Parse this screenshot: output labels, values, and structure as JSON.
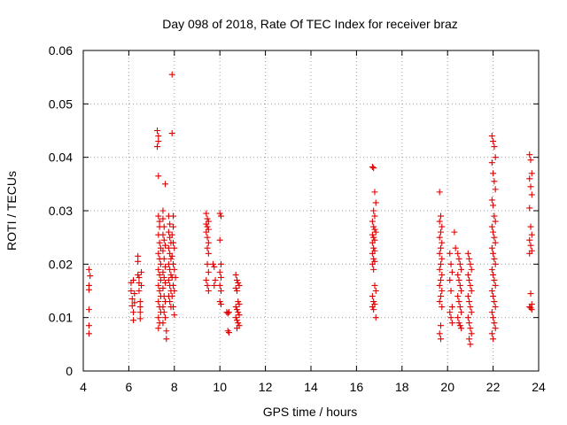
{
  "chart_data": {
    "type": "scatter",
    "title": "Day 098 of 2018, Rate Of TEC Index for receiver braz",
    "xlabel": "GPS time / hours",
    "ylabel": "ROTI / TECUs",
    "xlim": [
      4,
      24
    ],
    "ylim": [
      0,
      0.06
    ],
    "xticks": [
      "4",
      "6",
      "8",
      "10",
      "12",
      "14",
      "16",
      "18",
      "20",
      "22",
      "24"
    ],
    "yticks": [
      "0",
      "0.01",
      "0.02",
      "0.03",
      "0.04",
      "0.05",
      "0.06"
    ],
    "grid": true,
    "marker": "+",
    "marker_color": "#e00000",
    "series": [
      {
        "points": [
          [
            4.25,
            0.019
          ],
          [
            4.25,
            0.016
          ],
          [
            4.25,
            0.0152
          ],
          [
            4.25,
            0.0115
          ],
          [
            4.25,
            0.0085
          ],
          [
            4.25,
            0.007
          ],
          [
            4.3,
            0.0178
          ],
          [
            6.1,
            0.0165
          ],
          [
            6.1,
            0.015
          ],
          [
            6.15,
            0.0135
          ],
          [
            6.15,
            0.0122
          ],
          [
            6.2,
            0.011
          ],
          [
            6.2,
            0.0095
          ],
          [
            6.2,
            0.017
          ],
          [
            6.25,
            0.0128
          ],
          [
            6.25,
            0.0145
          ],
          [
            6.4,
            0.0215
          ],
          [
            6.4,
            0.0205
          ],
          [
            6.4,
            0.018
          ],
          [
            6.45,
            0.0175
          ],
          [
            6.45,
            0.0165
          ],
          [
            6.45,
            0.015
          ],
          [
            6.5,
            0.013
          ],
          [
            6.5,
            0.012
          ],
          [
            6.5,
            0.011
          ],
          [
            6.5,
            0.0098
          ],
          [
            6.55,
            0.0185
          ],
          [
            6.55,
            0.016
          ],
          [
            7.25,
            0.045
          ],
          [
            7.3,
            0.044
          ],
          [
            7.3,
            0.043
          ],
          [
            7.25,
            0.042
          ],
          [
            7.3,
            0.0365
          ],
          [
            7.3,
            0.029
          ],
          [
            7.35,
            0.028
          ],
          [
            7.35,
            0.027
          ],
          [
            7.3,
            0.0255
          ],
          [
            7.35,
            0.024
          ],
          [
            7.4,
            0.023
          ],
          [
            7.3,
            0.022
          ],
          [
            7.35,
            0.021
          ],
          [
            7.4,
            0.02
          ],
          [
            7.3,
            0.019
          ],
          [
            7.35,
            0.018
          ],
          [
            7.4,
            0.017
          ],
          [
            7.3,
            0.016
          ],
          [
            7.35,
            0.015
          ],
          [
            7.4,
            0.014
          ],
          [
            7.3,
            0.013
          ],
          [
            7.35,
            0.012
          ],
          [
            7.4,
            0.011
          ],
          [
            7.3,
            0.01
          ],
          [
            7.35,
            0.009
          ],
          [
            7.3,
            0.008
          ],
          [
            7.5,
            0.03
          ],
          [
            7.5,
            0.0285
          ],
          [
            7.55,
            0.027
          ],
          [
            7.5,
            0.0255
          ],
          [
            7.55,
            0.0245
          ],
          [
            7.6,
            0.0235
          ],
          [
            7.5,
            0.0225
          ],
          [
            7.55,
            0.021
          ],
          [
            7.6,
            0.0195
          ],
          [
            7.5,
            0.0185
          ],
          [
            7.55,
            0.0175
          ],
          [
            7.6,
            0.0165
          ],
          [
            7.5,
            0.0155
          ],
          [
            7.55,
            0.014
          ],
          [
            7.6,
            0.013
          ],
          [
            7.5,
            0.012
          ],
          [
            7.55,
            0.011
          ],
          [
            7.6,
            0.01
          ],
          [
            7.5,
            0.009
          ],
          [
            7.65,
            0.0075
          ],
          [
            7.65,
            0.006
          ],
          [
            7.6,
            0.035
          ],
          [
            7.75,
            0.029
          ],
          [
            7.8,
            0.0275
          ],
          [
            7.75,
            0.026
          ],
          [
            7.8,
            0.025
          ],
          [
            7.85,
            0.024
          ],
          [
            7.75,
            0.023
          ],
          [
            7.8,
            0.022
          ],
          [
            7.85,
            0.021
          ],
          [
            7.75,
            0.02
          ],
          [
            7.8,
            0.019
          ],
          [
            7.85,
            0.018
          ],
          [
            7.75,
            0.017
          ],
          [
            7.8,
            0.016
          ],
          [
            7.85,
            0.015
          ],
          [
            7.75,
            0.014
          ],
          [
            7.8,
            0.013
          ],
          [
            7.85,
            0.012
          ],
          [
            7.9,
            0.0555
          ],
          [
            7.9,
            0.0445
          ],
          [
            7.95,
            0.029
          ],
          [
            7.95,
            0.027
          ],
          [
            7.9,
            0.0255
          ],
          [
            7.95,
            0.024
          ],
          [
            8.0,
            0.023
          ],
          [
            7.9,
            0.0215
          ],
          [
            7.95,
            0.02
          ],
          [
            8.0,
            0.019
          ],
          [
            7.9,
            0.0175
          ],
          [
            7.95,
            0.016
          ],
          [
            8.0,
            0.015
          ],
          [
            7.9,
            0.014
          ],
          [
            7.95,
            0.012
          ],
          [
            8.0,
            0.0105
          ],
          [
            8.05,
            0.0175
          ],
          [
            9.4,
            0.0295
          ],
          [
            9.45,
            0.0285
          ],
          [
            9.5,
            0.028
          ],
          [
            9.4,
            0.0275
          ],
          [
            9.45,
            0.027
          ],
          [
            9.5,
            0.0265
          ],
          [
            9.4,
            0.026
          ],
          [
            9.45,
            0.025
          ],
          [
            9.5,
            0.024
          ],
          [
            9.45,
            0.023
          ],
          [
            9.5,
            0.022
          ],
          [
            9.45,
            0.02
          ],
          [
            9.5,
            0.0185
          ],
          [
            9.4,
            0.017
          ],
          [
            9.45,
            0.016
          ],
          [
            9.5,
            0.015
          ],
          [
            9.7,
            0.02
          ],
          [
            9.75,
            0.0195
          ],
          [
            9.8,
            0.017
          ],
          [
            9.75,
            0.016
          ],
          [
            10.0,
            0.0295
          ],
          [
            10.05,
            0.029
          ],
          [
            10.0,
            0.0245
          ],
          [
            10.05,
            0.02
          ],
          [
            10.0,
            0.0185
          ],
          [
            10.05,
            0.0175
          ],
          [
            10.0,
            0.016
          ],
          [
            10.05,
            0.015
          ],
          [
            10.0,
            0.013
          ],
          [
            10.05,
            0.0125
          ],
          [
            10.3,
            0.011
          ],
          [
            10.35,
            0.0108
          ],
          [
            10.4,
            0.011
          ],
          [
            10.35,
            0.0075
          ],
          [
            10.4,
            0.0072
          ],
          [
            10.7,
            0.018
          ],
          [
            10.75,
            0.017
          ],
          [
            10.8,
            0.0165
          ],
          [
            10.85,
            0.016
          ],
          [
            10.7,
            0.0155
          ],
          [
            10.75,
            0.015
          ],
          [
            10.8,
            0.013
          ],
          [
            10.85,
            0.0125
          ],
          [
            10.7,
            0.012
          ],
          [
            10.75,
            0.0115
          ],
          [
            10.8,
            0.011
          ],
          [
            10.85,
            0.0105
          ],
          [
            10.7,
            0.01
          ],
          [
            10.75,
            0.0095
          ],
          [
            10.8,
            0.009
          ],
          [
            10.85,
            0.0085
          ],
          [
            10.75,
            0.008
          ],
          [
            16.7,
            0.0382
          ],
          [
            16.75,
            0.038
          ],
          [
            16.8,
            0.0335
          ],
          [
            16.85,
            0.0315
          ],
          [
            16.75,
            0.03
          ],
          [
            16.8,
            0.029
          ],
          [
            16.7,
            0.028
          ],
          [
            16.75,
            0.027
          ],
          [
            16.8,
            0.0265
          ],
          [
            16.85,
            0.026
          ],
          [
            16.7,
            0.0255
          ],
          [
            16.75,
            0.025
          ],
          [
            16.8,
            0.0245
          ],
          [
            16.7,
            0.024
          ],
          [
            16.75,
            0.023
          ],
          [
            16.8,
            0.0225
          ],
          [
            16.7,
            0.022
          ],
          [
            16.75,
            0.021
          ],
          [
            16.8,
            0.0205
          ],
          [
            16.7,
            0.02
          ],
          [
            16.75,
            0.019
          ],
          [
            16.8,
            0.016
          ],
          [
            16.85,
            0.015
          ],
          [
            16.7,
            0.014
          ],
          [
            16.75,
            0.013
          ],
          [
            16.8,
            0.0125
          ],
          [
            16.7,
            0.012
          ],
          [
            16.75,
            0.0115
          ],
          [
            16.85,
            0.01
          ],
          [
            19.65,
            0.0335
          ],
          [
            19.7,
            0.029
          ],
          [
            19.65,
            0.028
          ],
          [
            19.75,
            0.027
          ],
          [
            19.7,
            0.026
          ],
          [
            19.65,
            0.025
          ],
          [
            19.75,
            0.024
          ],
          [
            19.7,
            0.023
          ],
          [
            19.65,
            0.022
          ],
          [
            19.75,
            0.021
          ],
          [
            19.7,
            0.02
          ],
          [
            19.65,
            0.019
          ],
          [
            19.75,
            0.018
          ],
          [
            19.7,
            0.017
          ],
          [
            19.65,
            0.016
          ],
          [
            19.75,
            0.015
          ],
          [
            19.7,
            0.014
          ],
          [
            19.65,
            0.013
          ],
          [
            19.75,
            0.012
          ],
          [
            19.7,
            0.0085
          ],
          [
            19.65,
            0.007
          ],
          [
            19.7,
            0.006
          ],
          [
            20.1,
            0.022
          ],
          [
            20.15,
            0.02
          ],
          [
            20.2,
            0.0185
          ],
          [
            20.1,
            0.017
          ],
          [
            20.15,
            0.015
          ],
          [
            20.2,
            0.012
          ],
          [
            20.1,
            0.011
          ],
          [
            20.15,
            0.01
          ],
          [
            20.2,
            0.009
          ],
          [
            20.3,
            0.026
          ],
          [
            20.35,
            0.023
          ],
          [
            20.45,
            0.022
          ],
          [
            20.5,
            0.021
          ],
          [
            20.55,
            0.02
          ],
          [
            20.6,
            0.019
          ],
          [
            20.45,
            0.018
          ],
          [
            20.5,
            0.017
          ],
          [
            20.55,
            0.016
          ],
          [
            20.6,
            0.015
          ],
          [
            20.45,
            0.014
          ],
          [
            20.5,
            0.013
          ],
          [
            20.55,
            0.012
          ],
          [
            20.6,
            0.011
          ],
          [
            20.45,
            0.01
          ],
          [
            20.5,
            0.009
          ],
          [
            20.55,
            0.0085
          ],
          [
            20.6,
            0.008
          ],
          [
            20.9,
            0.022
          ],
          [
            20.95,
            0.021
          ],
          [
            21.0,
            0.02
          ],
          [
            21.05,
            0.019
          ],
          [
            20.9,
            0.018
          ],
          [
            20.95,
            0.017
          ],
          [
            21.0,
            0.016
          ],
          [
            21.05,
            0.015
          ],
          [
            20.9,
            0.014
          ],
          [
            20.95,
            0.013
          ],
          [
            21.0,
            0.012
          ],
          [
            21.05,
            0.011
          ],
          [
            20.9,
            0.01
          ],
          [
            20.95,
            0.009
          ],
          [
            21.0,
            0.008
          ],
          [
            21.05,
            0.007
          ],
          [
            20.95,
            0.006
          ],
          [
            21.0,
            0.005
          ],
          [
            21.95,
            0.044
          ],
          [
            22.0,
            0.043
          ],
          [
            22.05,
            0.042
          ],
          [
            22.1,
            0.04
          ],
          [
            21.95,
            0.039
          ],
          [
            22.0,
            0.037
          ],
          [
            22.05,
            0.0355
          ],
          [
            22.1,
            0.034
          ],
          [
            21.95,
            0.032
          ],
          [
            22.0,
            0.031
          ],
          [
            22.05,
            0.029
          ],
          [
            22.1,
            0.028
          ],
          [
            21.95,
            0.027
          ],
          [
            22.0,
            0.026
          ],
          [
            22.05,
            0.025
          ],
          [
            22.1,
            0.024
          ],
          [
            21.95,
            0.023
          ],
          [
            22.0,
            0.022
          ],
          [
            22.05,
            0.021
          ],
          [
            22.1,
            0.02
          ],
          [
            21.95,
            0.019
          ],
          [
            22.0,
            0.018
          ],
          [
            22.05,
            0.017
          ],
          [
            22.1,
            0.016
          ],
          [
            21.95,
            0.015
          ],
          [
            22.0,
            0.014
          ],
          [
            22.05,
            0.013
          ],
          [
            22.1,
            0.012
          ],
          [
            21.95,
            0.011
          ],
          [
            22.0,
            0.01
          ],
          [
            22.05,
            0.009
          ],
          [
            22.1,
            0.008
          ],
          [
            21.95,
            0.007
          ],
          [
            22.0,
            0.006
          ],
          [
            23.6,
            0.0405
          ],
          [
            23.65,
            0.0395
          ],
          [
            23.7,
            0.037
          ],
          [
            23.6,
            0.036
          ],
          [
            23.65,
            0.0345
          ],
          [
            23.7,
            0.033
          ],
          [
            23.6,
            0.0305
          ],
          [
            23.65,
            0.027
          ],
          [
            23.7,
            0.0255
          ],
          [
            23.6,
            0.0245
          ],
          [
            23.65,
            0.0235
          ],
          [
            23.7,
            0.0225
          ],
          [
            23.6,
            0.022
          ],
          [
            23.65,
            0.0145
          ],
          [
            23.7,
            0.0125
          ],
          [
            23.6,
            0.012
          ],
          [
            23.65,
            0.0118
          ],
          [
            23.7,
            0.0115
          ]
        ]
      }
    ]
  }
}
